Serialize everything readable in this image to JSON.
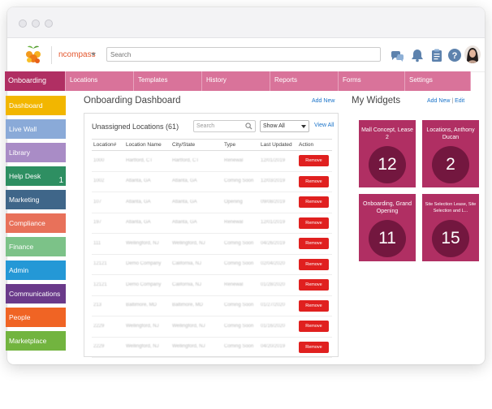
{
  "brand": {
    "name": "ncompass"
  },
  "search": {
    "placeholder": "Search"
  },
  "nav": {
    "tabs": [
      {
        "label": "Onboarding",
        "active": true,
        "width": 75
      },
      {
        "label": "Locations",
        "active": false,
        "width": 84
      },
      {
        "label": "Templates",
        "active": false,
        "width": 84
      },
      {
        "label": "History",
        "active": false,
        "width": 84
      },
      {
        "label": "Reports",
        "active": false,
        "width": 84
      },
      {
        "label": "Forms",
        "active": false,
        "width": 82
      },
      {
        "label": "Settings",
        "active": false,
        "width": 81
      }
    ]
  },
  "sidebar": {
    "items": [
      {
        "label": "Dashboard",
        "color": "#f2b600",
        "badge": ""
      },
      {
        "label": "Live Wall",
        "color": "#8aaad8",
        "badge": ""
      },
      {
        "label": "Library",
        "color": "#a98cc6",
        "badge": ""
      },
      {
        "label": "Help Desk",
        "color": "#2e8f62",
        "badge": "1"
      },
      {
        "label": "Marketing",
        "color": "#3f6689",
        "badge": ""
      },
      {
        "label": "Compliance",
        "color": "#e8715a",
        "badge": ""
      },
      {
        "label": "Finance",
        "color": "#7cc288",
        "badge": ""
      },
      {
        "label": "Admin",
        "color": "#2498d6",
        "badge": ""
      },
      {
        "label": "Communications",
        "color": "#6a3a8a",
        "badge": ""
      },
      {
        "label": "People",
        "color": "#f06424",
        "badge": ""
      },
      {
        "label": "Marketplace",
        "color": "#72b43f",
        "badge": ""
      }
    ]
  },
  "dashboard": {
    "title": "Onboarding Dashboard",
    "add_new": "Add New",
    "panel": {
      "title": "Unassigned Locations (61)",
      "search_placeholder": "Search",
      "filter_value": "Show All",
      "view_all": "View All",
      "columns": [
        "Location#",
        "Location Name",
        "City/State",
        "Type",
        "Last Updated",
        "Action"
      ],
      "remove_label": "Remove",
      "rows": [
        {
          "id": "1000",
          "name": "Hartford, CT",
          "city": "Hartford, CT",
          "type": "Renewal",
          "updated": "12/01/2019"
        },
        {
          "id": "1002",
          "name": "Atlanta, GA",
          "city": "Atlanta, GA",
          "type": "Coming Soon",
          "updated": "12/03/2019"
        },
        {
          "id": "107",
          "name": "Atlanta, GA",
          "city": "Atlanta, GA",
          "type": "Opening",
          "updated": "09/08/2019"
        },
        {
          "id": "197",
          "name": "Atlanta, GA",
          "city": "Atlanta, GA",
          "type": "Renewal",
          "updated": "12/01/2019"
        },
        {
          "id": "111",
          "name": "Wellingford, NJ",
          "city": "Wellingford, NJ",
          "type": "Coming Soon",
          "updated": "04/26/2019"
        },
        {
          "id": "12121",
          "name": "Demo Company",
          "city": "California, NJ",
          "type": "Coming Soon",
          "updated": "02/04/2020"
        },
        {
          "id": "12121",
          "name": "Demo Company",
          "city": "California, NJ",
          "type": "Renewal",
          "updated": "01/28/2020"
        },
        {
          "id": "213",
          "name": "Baltimore, MD",
          "city": "Baltimore, MD",
          "type": "Coming Soon",
          "updated": "01/27/2020"
        },
        {
          "id": "2229",
          "name": "Wellingford, NJ",
          "city": "Wellingford, NJ",
          "type": "Coming Soon",
          "updated": "01/16/2020"
        },
        {
          "id": "2229",
          "name": "Wellingford, NJ",
          "city": "Wellingford, NJ",
          "type": "Coming Soon",
          "updated": "04/20/2019"
        }
      ]
    }
  },
  "widgets": {
    "title": "My Widgets",
    "add_new": "Add New",
    "edit": "Edit",
    "cards": [
      {
        "label": "Mall Concept, Lease 2",
        "value": "12"
      },
      {
        "label": "Locations, Anthony Ducan",
        "value": "2"
      },
      {
        "label": "Onboarding, Grand Opening",
        "value": "11"
      },
      {
        "label": "Site Selection Lease, Site Selection and L...",
        "value": "15"
      }
    ]
  },
  "colors": {
    "accent": "#b02f63",
    "nav_tab": "#d9739a",
    "link": "#1a73c9",
    "remove": "#e0201f"
  },
  "icons": [
    "chat-icon",
    "bell-icon",
    "clipboard-icon",
    "help-icon"
  ]
}
